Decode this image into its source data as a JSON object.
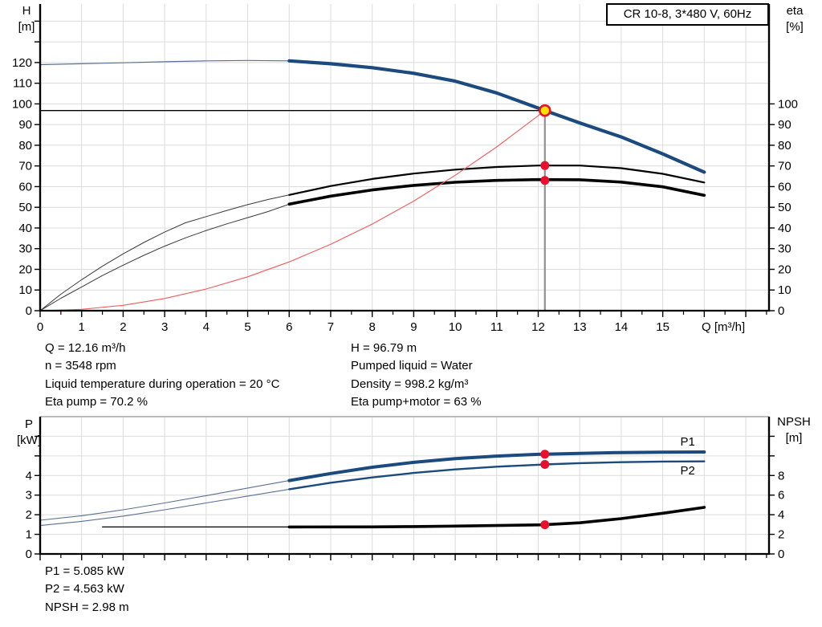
{
  "title_box": "CR 10-8, 3*480 V, 60Hz",
  "info_top_left": [
    "Q = 12.16 m³/h",
    "n = 3548 rpm",
    "Liquid temperature during operation = 20 °C",
    "Eta pump = 70.2 %"
  ],
  "info_top_right": [
    "H = 96.79 m",
    "Pumped liquid = Water",
    "Density = 998.2 kg/m³",
    "Eta pump+motor = 63 %"
  ],
  "info_bottom": [
    "P1 = 5.085 kW",
    "P2 = 4.563 kW",
    "NPSH = 2.98 m"
  ],
  "colors": {
    "curve_blue": "#1b4a7e",
    "thin_blue": "#5a7194",
    "curve_black": "#000000",
    "thin_black": "#3a3a3a",
    "system_red": "#f25b5b",
    "marker_red": "#e8112d",
    "duty_yellow": "#ffe100",
    "grid": "#dcdcdc",
    "top_border_gray": "#a6a6a6",
    "drop_line_gray": "#909090"
  },
  "chart_data": [
    {
      "type": "line",
      "name": "hq-efficiency-chart",
      "x_axis": {
        "label": "Q [m³/h]",
        "min": 0,
        "max": 17.56,
        "minor_step": 0.5,
        "majors": [
          {
            "v": 0,
            "t": "0"
          },
          {
            "v": 1,
            "t": "1"
          },
          {
            "v": 2,
            "t": "2"
          },
          {
            "v": 3,
            "t": "3"
          },
          {
            "v": 4,
            "t": "4"
          },
          {
            "v": 5,
            "t": "5"
          },
          {
            "v": 6,
            "t": "6"
          },
          {
            "v": 7,
            "t": "7"
          },
          {
            "v": 8,
            "t": "8"
          },
          {
            "v": 9,
            "t": "9"
          },
          {
            "v": 10,
            "t": "10"
          },
          {
            "v": 11,
            "t": "11"
          },
          {
            "v": 12,
            "t": "12"
          },
          {
            "v": 13,
            "t": "13"
          },
          {
            "v": 14,
            "t": "14"
          },
          {
            "v": 15,
            "t": "15"
          },
          {
            "v": 16,
            "t": ""
          },
          {
            "v": 17,
            "t": ""
          }
        ]
      },
      "left_axis": {
        "name": "H",
        "unit": "[m]",
        "min": 0,
        "max": 148.3,
        "ticks": [
          {
            "v": 0,
            "t": "0"
          },
          {
            "v": 10,
            "t": "10"
          },
          {
            "v": 20,
            "t": "20"
          },
          {
            "v": 30,
            "t": "30"
          },
          {
            "v": 40,
            "t": "40"
          },
          {
            "v": 50,
            "t": "50"
          },
          {
            "v": 60,
            "t": "60"
          },
          {
            "v": 70,
            "t": "70"
          },
          {
            "v": 80,
            "t": "80"
          },
          {
            "v": 90,
            "t": "90"
          },
          {
            "v": 100,
            "t": "100"
          },
          {
            "v": 110,
            "t": "110"
          },
          {
            "v": 120,
            "t": "120"
          },
          {
            "v": 130,
            "t": ""
          },
          {
            "v": 140,
            "t": ""
          }
        ]
      },
      "right_axis": {
        "name": "eta",
        "unit": "[%]",
        "min": 0,
        "max": 148.3,
        "ticks": [
          {
            "v": 0,
            "t": "0"
          },
          {
            "v": 10,
            "t": "10"
          },
          {
            "v": 20,
            "t": "20"
          },
          {
            "v": 30,
            "t": "30"
          },
          {
            "v": 40,
            "t": "40"
          },
          {
            "v": 50,
            "t": "50"
          },
          {
            "v": 60,
            "t": "60"
          },
          {
            "v": 70,
            "t": "70"
          },
          {
            "v": 80,
            "t": "80"
          },
          {
            "v": 90,
            "t": "90"
          },
          {
            "v": 100,
            "t": "100"
          }
        ]
      },
      "series": [
        {
          "name": "head-curve-thin",
          "color": "#5a7194",
          "width": 1.2,
          "points": [
            [
              0,
              119
            ],
            [
              1,
              119.4
            ],
            [
              2,
              119.9
            ],
            [
              3,
              120.4
            ],
            [
              4,
              120.8
            ],
            [
              5,
              121
            ],
            [
              6,
              120.8
            ]
          ]
        },
        {
          "name": "head-curve",
          "color": "#1b4a7e",
          "width": 4.2,
          "points": [
            [
              6,
              120.8
            ],
            [
              7,
              119.4
            ],
            [
              8,
              117.5
            ],
            [
              9,
              114.8
            ],
            [
              10,
              111.0
            ],
            [
              11,
              105.3
            ],
            [
              12,
              98.0
            ],
            [
              12.16,
              96.79
            ],
            [
              13,
              90.8
            ],
            [
              14,
              84.0
            ],
            [
              15,
              75.8
            ],
            [
              16,
              67.0
            ]
          ]
        },
        {
          "name": "eta-pump-curve-thin",
          "color": "#3a3a3a",
          "width": 1,
          "points": [
            [
              0,
              0
            ],
            [
              0.5,
              8
            ],
            [
              1,
              15
            ],
            [
              1.5,
              21.5
            ],
            [
              2,
              27.5
            ],
            [
              2.5,
              33
            ],
            [
              3,
              38
            ],
            [
              3.5,
              42.5
            ],
            [
              4,
              45.5
            ],
            [
              4.5,
              48.5
            ],
            [
              5,
              51.3
            ],
            [
              5.5,
              53.8
            ],
            [
              6,
              56
            ]
          ]
        },
        {
          "name": "eta-pump-curve",
          "color": "#000000",
          "width": 2.2,
          "points": [
            [
              6,
              56
            ],
            [
              7,
              60.3
            ],
            [
              8,
              63.7
            ],
            [
              9,
              66.3
            ],
            [
              10,
              68.2
            ],
            [
              11,
              69.5
            ],
            [
              12,
              70.2
            ],
            [
              13,
              70.2
            ],
            [
              14,
              68.9
            ],
            [
              15,
              66.2
            ],
            [
              16,
              62
            ]
          ]
        },
        {
          "name": "eta-pump-motor-curve-thin",
          "color": "#3a3a3a",
          "width": 1,
          "points": [
            [
              0,
              0
            ],
            [
              0.5,
              6
            ],
            [
              1,
              11.5
            ],
            [
              1.5,
              17
            ],
            [
              2,
              22
            ],
            [
              2.5,
              26.8
            ],
            [
              3,
              31.2
            ],
            [
              3.5,
              35.2
            ],
            [
              4,
              38.8
            ],
            [
              4.5,
              42
            ],
            [
              5,
              45
            ],
            [
              5.5,
              48
            ],
            [
              6,
              51.5
            ]
          ]
        },
        {
          "name": "eta-pump-motor-curve",
          "color": "#000000",
          "width": 3.6,
          "points": [
            [
              6,
              51.5
            ],
            [
              7,
              55.4
            ],
            [
              8,
              58.4
            ],
            [
              9,
              60.6
            ],
            [
              10,
              62.1
            ],
            [
              11,
              63
            ],
            [
              12,
              63.4
            ],
            [
              13,
              63.3
            ],
            [
              14,
              62.2
            ],
            [
              15,
              59.9
            ],
            [
              16,
              55.8
            ]
          ]
        },
        {
          "name": "system-curve",
          "color": "#f25b5b",
          "width": 1.1,
          "points": [
            [
              0,
              0
            ],
            [
              1,
              0.65
            ],
            [
              2,
              2.6
            ],
            [
              3,
              5.9
            ],
            [
              4,
              10.5
            ],
            [
              5,
              16.4
            ],
            [
              6,
              23.6
            ],
            [
              7,
              32.1
            ],
            [
              8,
              41.9
            ],
            [
              9,
              53
            ],
            [
              10,
              65.5
            ],
            [
              11,
              79.2
            ],
            [
              12,
              94.3
            ],
            [
              12.16,
              96.79
            ]
          ]
        }
      ],
      "crosshair": {
        "h_line": 96.79,
        "v_line": 12.16
      },
      "duty_point": {
        "q": 12.16,
        "h": 96.79
      },
      "markers": [
        {
          "name": "eta-pump-dot",
          "q": 12.16,
          "v": 70.2
        },
        {
          "name": "eta-pump-motor-dot",
          "q": 12.16,
          "v": 63
        }
      ]
    },
    {
      "type": "line",
      "name": "power-npsh-chart",
      "top_border": true,
      "x_axis": {
        "label": "",
        "min": 0,
        "max": 17.56,
        "minor_step": 0.5,
        "majors": [
          {
            "v": 0,
            "t": ""
          },
          {
            "v": 1,
            "t": ""
          },
          {
            "v": 2,
            "t": ""
          },
          {
            "v": 3,
            "t": ""
          },
          {
            "v": 4,
            "t": ""
          },
          {
            "v": 5,
            "t": ""
          },
          {
            "v": 6,
            "t": ""
          },
          {
            "v": 7,
            "t": ""
          },
          {
            "v": 8,
            "t": ""
          },
          {
            "v": 9,
            "t": ""
          },
          {
            "v": 10,
            "t": ""
          },
          {
            "v": 11,
            "t": ""
          },
          {
            "v": 12,
            "t": ""
          },
          {
            "v": 13,
            "t": ""
          },
          {
            "v": 14,
            "t": ""
          },
          {
            "v": 15,
            "t": ""
          },
          {
            "v": 16,
            "t": ""
          },
          {
            "v": 17,
            "t": ""
          }
        ]
      },
      "left_axis": {
        "name": "P",
        "unit": "[kW]",
        "min": 0,
        "max": 7.0,
        "ticks": [
          {
            "v": 0,
            "t": "0"
          },
          {
            "v": 1,
            "t": "1"
          },
          {
            "v": 2,
            "t": "2"
          },
          {
            "v": 3,
            "t": "3"
          },
          {
            "v": 4,
            "t": "4"
          },
          {
            "v": 5,
            "t": ""
          },
          {
            "v": 6,
            "t": ""
          }
        ]
      },
      "right_axis": {
        "name": "NPSH",
        "unit": "[m]",
        "min": 0,
        "max": 14.0,
        "ticks": [
          {
            "v": 0,
            "t": "0"
          },
          {
            "v": 2,
            "t": "2"
          },
          {
            "v": 4,
            "t": "4"
          },
          {
            "v": 6,
            "t": "6"
          },
          {
            "v": 8,
            "t": "8"
          },
          {
            "v": 10,
            "t": ""
          },
          {
            "v": 12,
            "t": ""
          }
        ]
      },
      "series": [
        {
          "name": "p1-curve-thin",
          "color": "#5a7194",
          "width": 1.1,
          "points": [
            [
              0,
              1.72
            ],
            [
              1,
              1.95
            ],
            [
              2,
              2.25
            ],
            [
              3,
              2.6
            ],
            [
              4,
              2.97
            ],
            [
              5,
              3.36
            ],
            [
              6,
              3.74
            ]
          ]
        },
        {
          "name": "p1-curve",
          "color": "#1b4a7e",
          "width": 4,
          "points": [
            [
              6,
              3.74
            ],
            [
              7,
              4.1
            ],
            [
              8,
              4.42
            ],
            [
              9,
              4.67
            ],
            [
              10,
              4.86
            ],
            [
              11,
              4.99
            ],
            [
              12,
              5.08
            ],
            [
              12.16,
              5.085
            ],
            [
              13,
              5.13
            ],
            [
              14,
              5.17
            ],
            [
              15,
              5.19
            ],
            [
              16,
              5.2
            ]
          ]
        },
        {
          "name": "p2-curve-thin",
          "color": "#5a7194",
          "width": 1.1,
          "points": [
            [
              0,
              1.45
            ],
            [
              1,
              1.66
            ],
            [
              2,
              1.93
            ],
            [
              3,
              2.25
            ],
            [
              4,
              2.6
            ],
            [
              5,
              2.95
            ],
            [
              6,
              3.3
            ]
          ]
        },
        {
          "name": "p2-curve",
          "color": "#1b4a7e",
          "width": 2.4,
          "points": [
            [
              6,
              3.3
            ],
            [
              7,
              3.63
            ],
            [
              8,
              3.9
            ],
            [
              9,
              4.13
            ],
            [
              10,
              4.31
            ],
            [
              11,
              4.45
            ],
            [
              12,
              4.55
            ],
            [
              12.16,
              4.563
            ],
            [
              13,
              4.63
            ],
            [
              14,
              4.68
            ],
            [
              15,
              4.71
            ],
            [
              16,
              4.72
            ]
          ]
        },
        {
          "name": "npsh-curve-thin",
          "color": "#000000",
          "width": 1.2,
          "scale": "right",
          "points": [
            [
              1.5,
              2.75
            ],
            [
              6,
              2.75
            ]
          ]
        },
        {
          "name": "npsh-curve",
          "color": "#000000",
          "width": 3.6,
          "scale": "right",
          "points": [
            [
              6,
              2.75
            ],
            [
              8,
              2.76
            ],
            [
              9,
              2.79
            ],
            [
              10,
              2.84
            ],
            [
              11,
              2.9
            ],
            [
              12,
              2.96
            ],
            [
              12.16,
              2.98
            ],
            [
              13,
              3.18
            ],
            [
              14,
              3.6
            ],
            [
              15,
              4.15
            ],
            [
              16,
              4.75
            ]
          ]
        }
      ],
      "markers": [
        {
          "name": "p1-dot",
          "q": 12.16,
          "v": 5.085
        },
        {
          "name": "p2-dot",
          "q": 12.16,
          "v": 4.563
        },
        {
          "name": "npsh-dot",
          "q": 12.16,
          "v": 2.98,
          "scale": "right"
        }
      ],
      "series_labels": [
        {
          "text": "P1",
          "q": 15.6,
          "v": 5.73
        },
        {
          "text": "P2",
          "q": 15.6,
          "v": 4.26
        }
      ]
    }
  ]
}
